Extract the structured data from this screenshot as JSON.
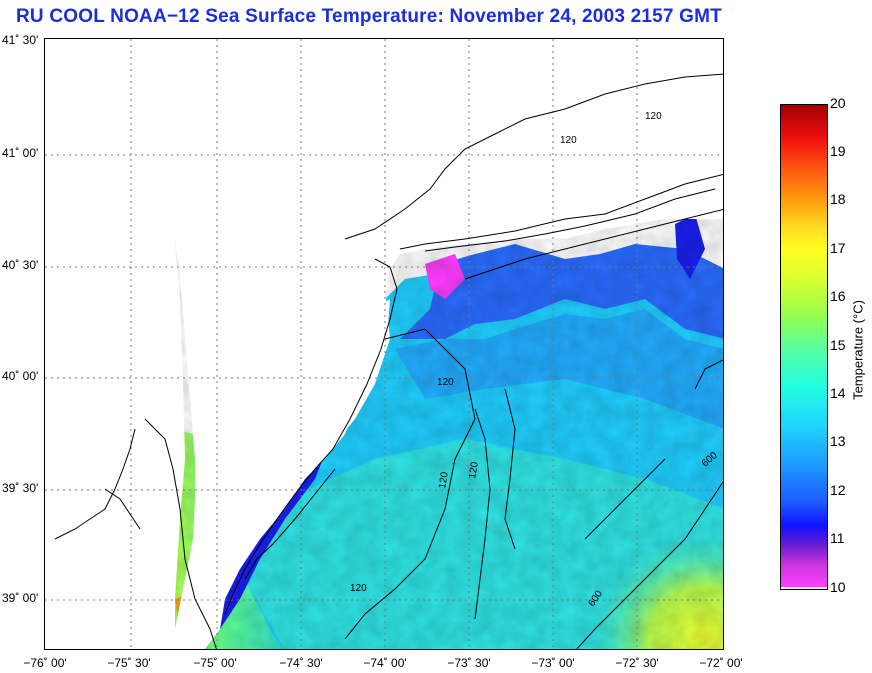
{
  "header": {
    "title": "RU COOL  NOAA−12  Sea Surface Temperature:  November 24, 2003 2157 GMT"
  },
  "map": {
    "lat_labels": [
      "41˚ 30'",
      "41˚ 00'",
      "40˚ 30'",
      "40˚ 00'",
      "39˚ 30'",
      "39˚ 00'"
    ],
    "lon_labels": [
      "−76˚ 00'",
      "−75˚ 30'",
      "−75˚ 00'",
      "−74˚ 30'",
      "−74˚ 00'",
      "−73˚ 30'",
      "−73˚ 00'",
      "−72˚ 30'",
      "−72˚ 00'"
    ],
    "isobaths": [
      "120",
      "120",
      "120",
      "120",
      "120",
      "120",
      "600",
      "600"
    ],
    "colors": {
      "land": "#ffffff",
      "cold_magenta": "#ff44ff",
      "blue": "#1418ff",
      "cyan": "#20d6ff",
      "green": "#5aff9c",
      "yellow": "#e8ff3a",
      "red": "#d01010"
    }
  },
  "colorbar": {
    "ticks": [
      "20",
      "19",
      "18",
      "17",
      "16",
      "15",
      "14",
      "13",
      "12",
      "11",
      "10"
    ],
    "unit_label": "Temperature (°C)",
    "min": 10,
    "max": 20
  }
}
